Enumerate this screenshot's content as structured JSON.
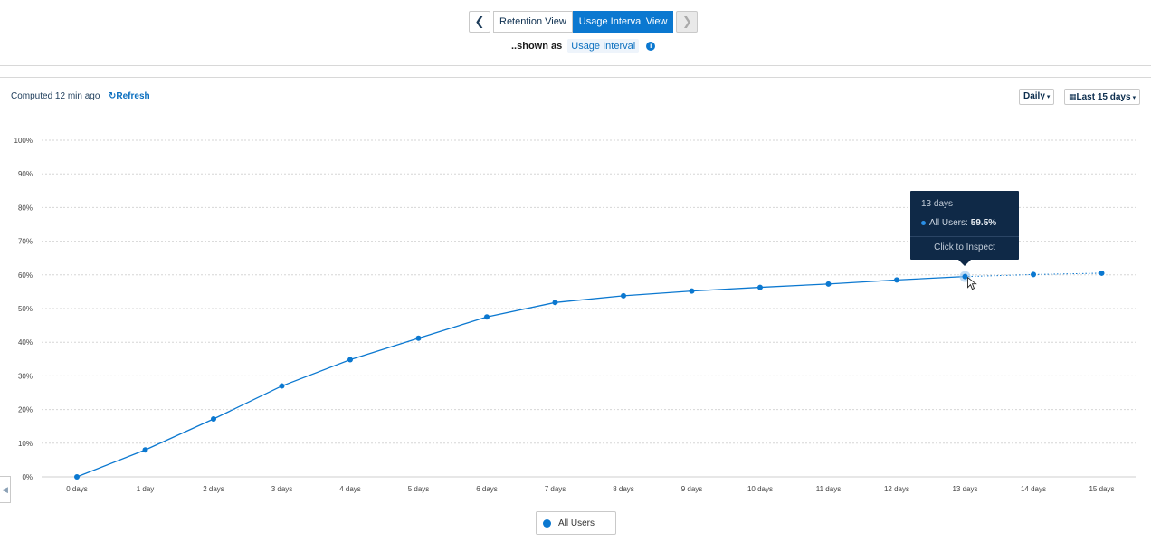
{
  "nav": {
    "tabs": [
      {
        "label": "Retention View",
        "active": false
      },
      {
        "label": "Usage Interval View",
        "active": true
      }
    ]
  },
  "shown_as": {
    "prefix": "..shown as",
    "value": "Usage Interval"
  },
  "status": {
    "computed": "Computed 12 min ago",
    "refresh": "Refresh"
  },
  "controls": {
    "granularity": "Daily",
    "range": "Last 15 days"
  },
  "tooltip": {
    "title": "13 days",
    "series": "All Users:",
    "value": "59.5%",
    "action": "Click to Inspect"
  },
  "colors": {
    "series": "#0b78d0",
    "tooltip_bg": "#0f2947"
  },
  "chart_data": {
    "type": "line",
    "categories": [
      "0 days",
      "1 day",
      "2 days",
      "3 days",
      "4 days",
      "5 days",
      "6 days",
      "7 days",
      "8 days",
      "9 days",
      "10 days",
      "11 days",
      "12 days",
      "13 days",
      "14 days",
      "15 days"
    ],
    "series": [
      {
        "name": "All Users",
        "values": [
          0,
          8,
          17.2,
          27,
          34.8,
          41.2,
          47.5,
          51.8,
          53.8,
          55.2,
          56.3,
          57.3,
          58.5,
          59.5,
          60.1,
          60.5
        ]
      }
    ],
    "incomplete_from_index": 13,
    "yticks": [
      "0%",
      "10%",
      "20%",
      "30%",
      "40%",
      "50%",
      "60%",
      "70%",
      "80%",
      "90%",
      "100%"
    ],
    "ylim": [
      0,
      100
    ],
    "grid": true,
    "legend": "bottom-center"
  }
}
